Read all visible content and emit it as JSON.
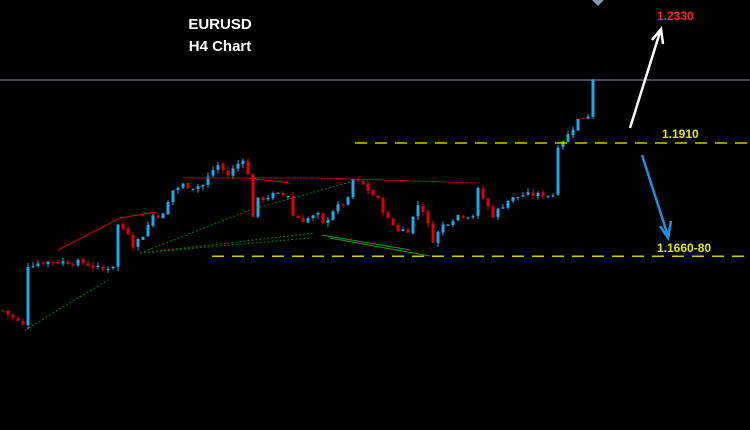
{
  "chart_data": {
    "type": "candlestick",
    "title": "EURUSD",
    "subtitle": "H4 Chart",
    "symbol": "EURUSD",
    "timeframe": "H4",
    "colors": {
      "bull": "#1ea8e8",
      "bear": "#e00000",
      "level": "#c8c800",
      "target_up": "#ff2020",
      "current_price_line": "#8a94a6"
    },
    "price_path": [
      [
        0,
        1.1555
      ],
      [
        4,
        1.1524
      ],
      [
        5,
        1.1651
      ],
      [
        8,
        1.1658
      ],
      [
        12,
        1.1658
      ],
      [
        16,
        1.1656
      ],
      [
        20,
        1.1641
      ],
      [
        22,
        1.1651
      ],
      [
        23,
        1.1736
      ],
      [
        25,
        1.1721
      ],
      [
        26,
        1.1694
      ],
      [
        28,
        1.1715
      ],
      [
        30,
        1.1757
      ],
      [
        32,
        1.1757
      ],
      [
        34,
        1.181
      ],
      [
        36,
        1.1821
      ],
      [
        38,
        1.1817
      ],
      [
        40,
        1.1821
      ],
      [
        42,
        1.1853
      ],
      [
        43,
        1.1863
      ],
      [
        45,
        1.1842
      ],
      [
        48,
        1.1878
      ],
      [
        49,
        1.1842
      ],
      [
        50,
        1.1757
      ],
      [
        51,
        1.1789
      ],
      [
        54,
        1.18
      ],
      [
        57,
        1.18
      ],
      [
        58,
        1.1757
      ],
      [
        60,
        1.1747
      ],
      [
        63,
        1.1757
      ],
      [
        64,
        1.1736
      ],
      [
        66,
        1.1768
      ],
      [
        69,
        1.1789
      ],
      [
        70,
        1.1832
      ],
      [
        72,
        1.1821
      ],
      [
        75,
        1.1789
      ],
      [
        77,
        1.1747
      ],
      [
        79,
        1.1726
      ],
      [
        81,
        1.1726
      ],
      [
        83,
        1.1779
      ],
      [
        84,
        1.1768
      ],
      [
        86,
        1.1704
      ],
      [
        88,
        1.1736
      ],
      [
        91,
        1.1757
      ],
      [
        94,
        1.1757
      ],
      [
        95,
        1.181
      ],
      [
        98,
        1.1757
      ],
      [
        101,
        1.1789
      ],
      [
        104,
        1.18
      ],
      [
        107,
        1.18
      ],
      [
        110,
        1.18
      ],
      [
        111,
        1.1906
      ],
      [
        113,
        1.1927
      ],
      [
        115,
        1.1959
      ],
      [
        117,
        1.1969
      ],
      [
        118,
        1.2048
      ]
    ],
    "levels": [
      {
        "label": "1.1910",
        "price": 1.191
      },
      {
        "label": "1.1660-80",
        "price": 1.167
      }
    ],
    "targets": {
      "up": "1.2330",
      "up_price_label": "1.2330"
    },
    "current_price": 1.2044
  }
}
